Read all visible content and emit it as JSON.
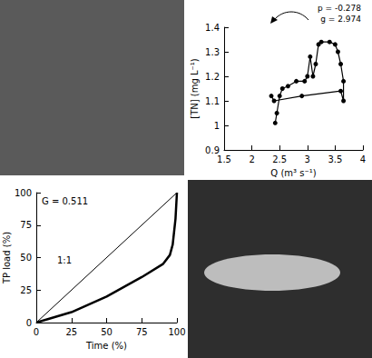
{
  "chart_data": [
    {
      "type": "line",
      "xlabel": "Q (m³ s⁻¹)",
      "ylabel": "[TN] (mg L⁻¹)",
      "xlim": [
        1.5,
        4
      ],
      "xticks": [
        1.5,
        2,
        2.5,
        3,
        3.5,
        4
      ],
      "ylim": [
        0.9,
        1.4
      ],
      "yticks": [
        0.9,
        1,
        1.1,
        1.2,
        1.3,
        1.4
      ],
      "grid": false,
      "annotations": [
        "p = -0.278",
        "g = 2.974"
      ],
      "series": [
        {
          "x": [
            2.35,
            2.4,
            2.9,
            3.6,
            3.65,
            3.65,
            3.6,
            3.55,
            3.5,
            3.4,
            3.25,
            3.2,
            3.15,
            3.1,
            3.05,
            3.0,
            2.95,
            2.8,
            2.65,
            2.55,
            2.5,
            2.45,
            2.42
          ],
          "values": [
            1.12,
            1.1,
            1.12,
            1.14,
            1.1,
            1.18,
            1.25,
            1.3,
            1.33,
            1.34,
            1.34,
            1.33,
            1.25,
            1.2,
            1.28,
            1.2,
            1.18,
            1.18,
            1.16,
            1.15,
            1.12,
            1.05,
            1.01
          ],
          "color": "#000000",
          "marker": "circle",
          "line_style": "solid"
        }
      ]
    },
    {
      "type": "line",
      "xlabel": "Time (%)",
      "ylabel": "TP load (%)",
      "xlim": [
        0,
        100
      ],
      "xticks": [
        0,
        25,
        50,
        75,
        100
      ],
      "ylim": [
        0,
        100
      ],
      "yticks": [
        0,
        25,
        50,
        75,
        100
      ],
      "grid": false,
      "annotations": [
        "G = 0.511"
      ],
      "series": [
        {
          "x": [
            0,
            25,
            50,
            75,
            90,
            95,
            97,
            99,
            100
          ],
          "values": [
            0,
            8,
            20,
            35,
            45,
            52,
            60,
            80,
            100
          ],
          "color": "#000000",
          "marker": "none",
          "line_style": "solid"
        },
        {
          "name": "1:1",
          "x": [
            0,
            100
          ],
          "values": [
            0,
            100
          ],
          "color": "#000000",
          "marker": "none",
          "line_style": "thin"
        }
      ]
    }
  ]
}
